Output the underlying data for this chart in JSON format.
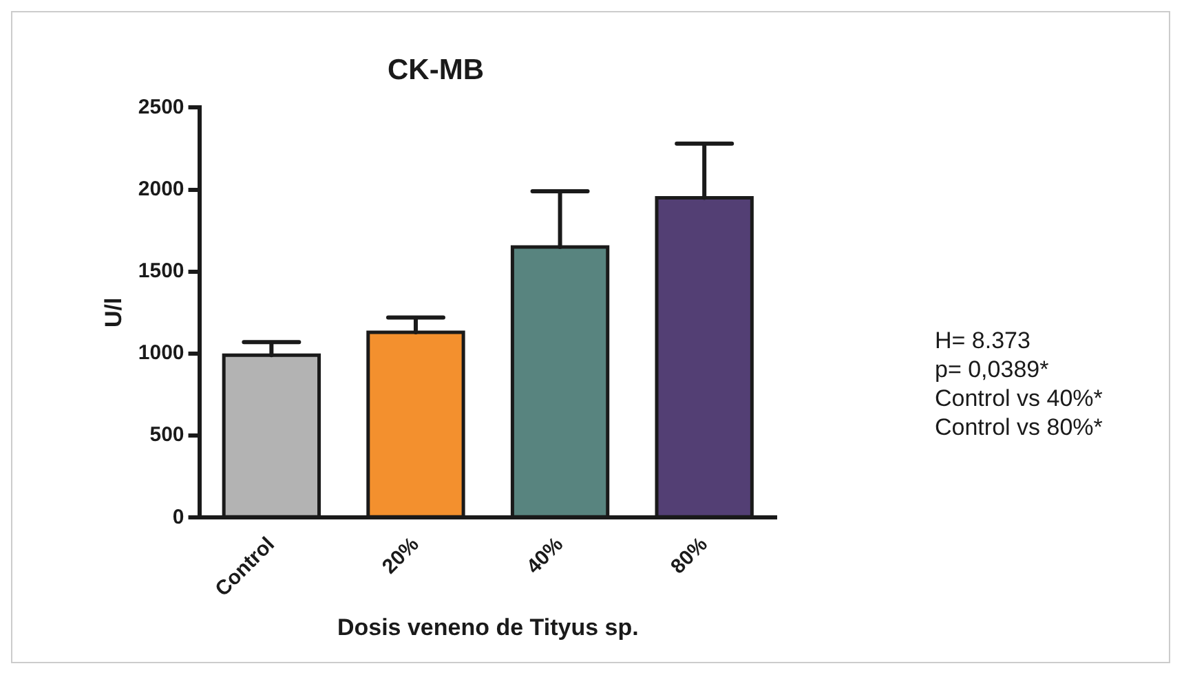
{
  "chart_data": {
    "type": "bar",
    "title": "CK-MB",
    "xlabel": "Dosis veneno de Tityus sp.",
    "ylabel": "U/l",
    "categories": [
      "Control",
      "20%",
      "40%",
      "80%"
    ],
    "values": [
      990,
      1130,
      1650,
      1950
    ],
    "colors": [
      "#b3b3b3",
      "#f3902e",
      "#58847f",
      "#533f74"
    ],
    "errors": [
      [
        990,
        1070
      ],
      [
        1130,
        1220
      ],
      [
        1650,
        1990
      ],
      [
        1950,
        2280
      ]
    ],
    "ylim": [
      0,
      2500
    ],
    "yticks": [
      0,
      500,
      1000,
      1500,
      2000,
      2500
    ],
    "grid": false,
    "legend": false,
    "annotations": [
      "H= 8.373",
      "p= 0,0389*",
      "Control vs 40%*",
      "Control vs 80%*"
    ]
  }
}
